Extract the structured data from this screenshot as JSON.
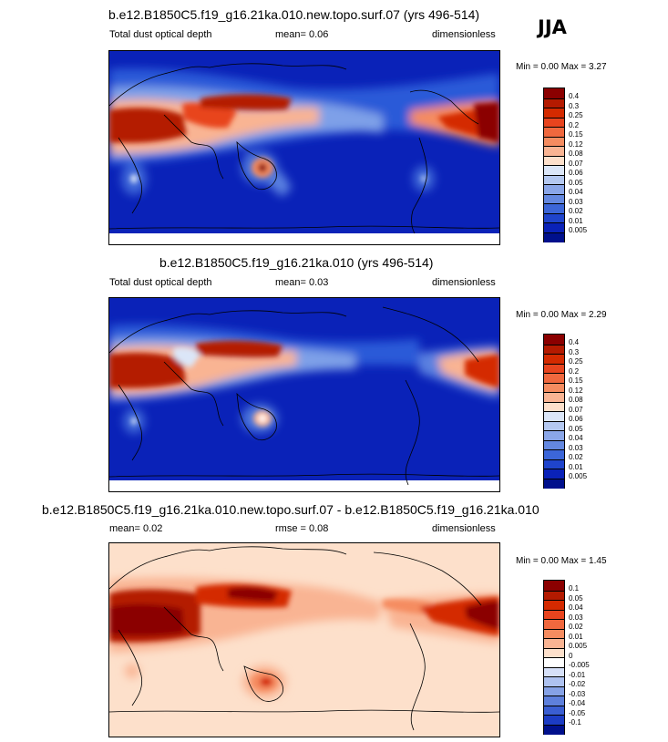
{
  "season": "JJA",
  "panels": [
    {
      "title": "b.e12.B1850C5.f19_g16.21ka.010.new.topo.surf.07 (yrs 496-514)",
      "variable": "Total dust optical depth",
      "stat": "mean=   0.06",
      "units": "dimensionless",
      "minmax": "Min =   0.00 Max =   3.27",
      "colorbar": {
        "labels": [
          "0.4",
          "0.3",
          "0.25",
          "0.2",
          "0.15",
          "0.12",
          "0.08",
          "0.07",
          "0.06",
          "0.05",
          "0.04",
          "0.03",
          "0.02",
          "0.01",
          "0.005"
        ],
        "colors": [
          "#8b0000",
          "#b41a00",
          "#d42a00",
          "#e8441e",
          "#f0683e",
          "#f58c60",
          "#f9b493",
          "#fde0cb",
          "#dbe6f8",
          "#b4c8f0",
          "#8aa6e8",
          "#6488e0",
          "#3c66d8",
          "#1f44cc",
          "#0a22b8",
          "#00108c"
        ]
      }
    },
    {
      "title": "b.e12.B1850C5.f19_g16.21ka.010 (yrs 496-514)",
      "variable": "Total dust optical depth",
      "stat": "mean=   0.03",
      "units": "dimensionless",
      "minmax": "Min =   0.00 Max =   2.29",
      "colorbar": {
        "labels": [
          "0.4",
          "0.3",
          "0.25",
          "0.2",
          "0.15",
          "0.12",
          "0.08",
          "0.07",
          "0.06",
          "0.05",
          "0.04",
          "0.03",
          "0.02",
          "0.01",
          "0.005"
        ],
        "colors": [
          "#8b0000",
          "#b41a00",
          "#d42a00",
          "#e8441e",
          "#f0683e",
          "#f58c60",
          "#f9b493",
          "#fde0cb",
          "#dbe6f8",
          "#b4c8f0",
          "#8aa6e8",
          "#6488e0",
          "#3c66d8",
          "#1f44cc",
          "#0a22b8",
          "#00108c"
        ]
      }
    },
    {
      "title": "b.e12.B1850C5.f19_g16.21ka.010.new.topo.surf.07 - b.e12.B1850C5.f19_g16.21ka.010",
      "stat": "mean=   0.02",
      "stat2": "rmse =   0.08",
      "units": "dimensionless",
      "minmax": "Min =   0.00 Max =   1.45",
      "colorbar": {
        "labels": [
          "0.1",
          "0.05",
          "0.04",
          "0.03",
          "0.02",
          "0.01",
          "0.005",
          "0",
          "-0.005",
          "-0.01",
          "-0.02",
          "-0.03",
          "-0.04",
          "-0.05",
          "-0.1"
        ],
        "colors": [
          "#8b0000",
          "#b41a00",
          "#d42a00",
          "#e8441e",
          "#f0683e",
          "#f58c60",
          "#f9b493",
          "#fde0cb",
          "#ffffff",
          "#d6e0f8",
          "#aec2f0",
          "#86a2e6",
          "#5e80dc",
          "#3a5ed2",
          "#1c3cc4",
          "#00108c"
        ]
      }
    }
  ],
  "colors": {
    "ocean_dust_base": "#0a22b8",
    "diff_base": "#fde0cb",
    "dust_high": "#8b0000"
  }
}
